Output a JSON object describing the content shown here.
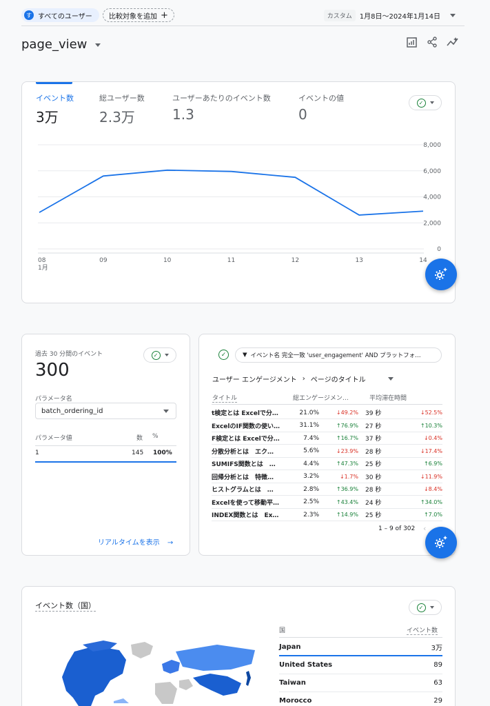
{
  "header": {
    "user_avatar": "す",
    "user_chip": "すべてのユーザー",
    "add_compare": "比較対象を追加",
    "date_tag": "カスタム",
    "date_range": "1月8日～2024年1月14日"
  },
  "title": "page_view",
  "metrics": [
    {
      "label": "イベント数",
      "value": "3万"
    },
    {
      "label": "総ユーザー数",
      "value": "2.3万"
    },
    {
      "label": "ユーザーあたりのイベント数",
      "value": "1.3"
    },
    {
      "label": "イベントの値",
      "value": "0"
    }
  ],
  "chart_data": {
    "type": "line",
    "categories": [
      "08",
      "09",
      "10",
      "11",
      "12",
      "13",
      "14"
    ],
    "x_sublabel": "1月",
    "values": [
      2800,
      5600,
      6050,
      5950,
      5500,
      2600,
      2900
    ],
    "yticks": [
      "8,000",
      "6,000",
      "4,000",
      "2,000",
      "0"
    ],
    "ylim": [
      0,
      8000
    ],
    "color": "#1a73e8",
    "grid": true
  },
  "realtime": {
    "label": "過去 30 分間のイベント",
    "value": "300",
    "param_name_label": "パラメータ名",
    "param_name": "batch_ordering_id",
    "param_value_label": "パラメータ値",
    "count_label": "数",
    "pct_label": "%",
    "rows": [
      {
        "value": "1",
        "count": "145",
        "pct": "100%"
      }
    ],
    "link": "リアルタイムを表示"
  },
  "engagement": {
    "filter": "イベント名 完全一致 'user_engagement' AND プラットフォ…",
    "crumb1": "ユーザー エンゲージメント",
    "crumb2": "ページのタイトル",
    "col_title": "タイトル",
    "col_total": "総エンゲージメン…",
    "col_avg": "平均滞在時間",
    "rows": [
      {
        "title": "t検定とは Excelで分…",
        "p1": "21.0%",
        "c1": "↓49.2%",
        "c1dir": "down",
        "s": "39 秒",
        "c2": "↓52.5%",
        "c2dir": "down"
      },
      {
        "title": "ExcelのIF関数の使い…",
        "p1": "31.1%",
        "c1": "↑76.9%",
        "c1dir": "up",
        "s": "27 秒",
        "c2": "↑10.3%",
        "c2dir": "up"
      },
      {
        "title": "F検定とは Excelで分…",
        "p1": "7.4%",
        "c1": "↑16.7%",
        "c1dir": "up",
        "s": "37 秒",
        "c2": "↓0.4%",
        "c2dir": "down"
      },
      {
        "title": "分散分析とは　エク…",
        "p1": "5.6%",
        "c1": "↓23.9%",
        "c1dir": "down",
        "s": "28 秒",
        "c2": "↓17.4%",
        "c2dir": "down"
      },
      {
        "title": "SUMIFS関数とは　…",
        "p1": "4.4%",
        "c1": "↑47.3%",
        "c1dir": "up",
        "s": "25 秒",
        "c2": "↑6.9%",
        "c2dir": "up"
      },
      {
        "title": "回帰分析とは　特徴…",
        "p1": "3.2%",
        "c1": "↓1.7%",
        "c1dir": "down",
        "s": "30 秒",
        "c2": "↓11.9%",
        "c2dir": "down"
      },
      {
        "title": "ヒストグラムとは　…",
        "p1": "2.8%",
        "c1": "↑36.9%",
        "c1dir": "up",
        "s": "28 秒",
        "c2": "↓8.4%",
        "c2dir": "down"
      },
      {
        "title": "Excelを使って移動平…",
        "p1": "2.5%",
        "c1": "↑43.4%",
        "c1dir": "up",
        "s": "24 秒",
        "c2": "↑34.0%",
        "c2dir": "up"
      },
      {
        "title": "INDEX関数とは　Ex…",
        "p1": "2.3%",
        "c1": "↑14.9%",
        "c1dir": "up",
        "s": "25 秒",
        "c2": "↑7.0%",
        "c2dir": "up"
      }
    ],
    "pagination": "1 – 9 of 302"
  },
  "geo": {
    "title": "イベント数（国）",
    "col_country": "国",
    "col_count": "イベント数",
    "rows": [
      {
        "country": "Japan",
        "count": "3万"
      },
      {
        "country": "United States",
        "count": "89"
      },
      {
        "country": "Taiwan",
        "count": "63"
      },
      {
        "country": "Morocco",
        "count": "29"
      }
    ]
  }
}
